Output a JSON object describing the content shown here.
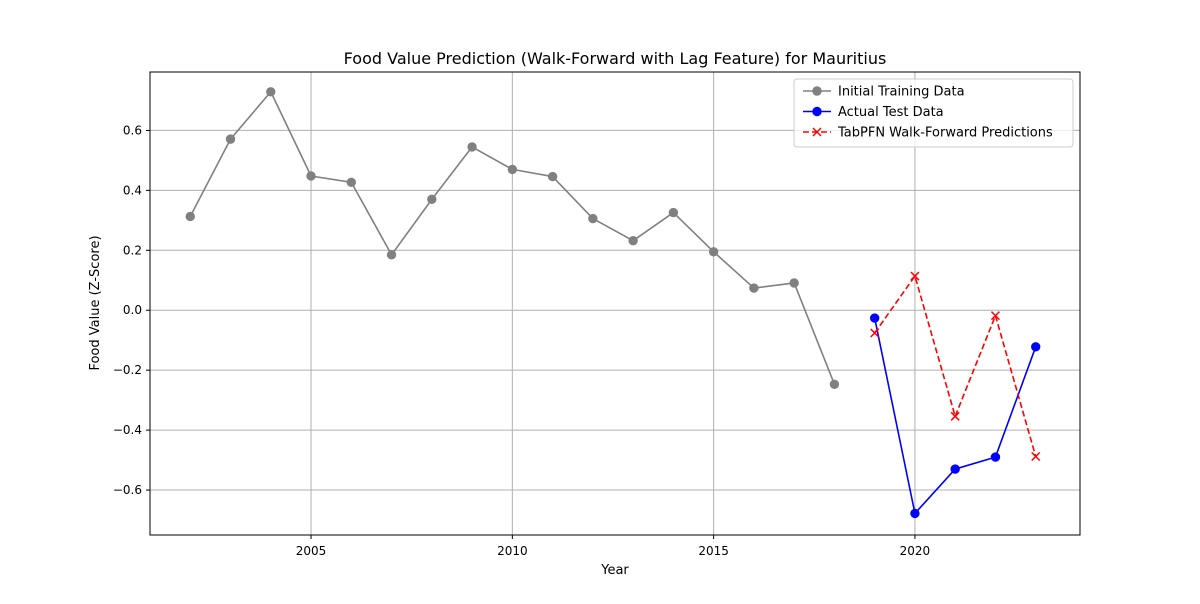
{
  "chart_data": {
    "type": "line",
    "title": "Food Value Prediction (Walk-Forward with Lag Feature) for Mauritius",
    "xlabel": "Year",
    "ylabel": "Food Value (Z-Score)",
    "xlim": [
      2001.0,
      2024.1
    ],
    "ylim": [
      -0.75,
      0.795
    ],
    "x_ticks": [
      2005,
      2010,
      2015,
      2020
    ],
    "y_ticks": [
      -0.6,
      -0.4,
      -0.2,
      0.0,
      0.2,
      0.4,
      0.6
    ],
    "x_tick_labels": [
      "2005",
      "2010",
      "2015",
      "2020"
    ],
    "y_tick_labels": [
      "−0.6",
      "−0.4",
      "−0.2",
      "0.0",
      "0.2",
      "0.4",
      "0.6"
    ],
    "grid": true,
    "legend_position": "top-right",
    "series": [
      {
        "name": "Initial Training Data",
        "color": "#808080",
        "marker": "circle",
        "line_style": "solid",
        "x": [
          2002,
          2003,
          2004,
          2005,
          2006,
          2007,
          2008,
          2009,
          2010,
          2011,
          2012,
          2013,
          2014,
          2015,
          2016,
          2017,
          2018
        ],
        "y": [
          0.313,
          0.571,
          0.729,
          0.448,
          0.427,
          0.185,
          0.37,
          0.545,
          0.47,
          0.446,
          0.306,
          0.232,
          0.326,
          0.195,
          0.074,
          0.091,
          -0.247
        ]
      },
      {
        "name": "Actual Test Data",
        "color": "#0000ff",
        "marker": "circle",
        "line_style": "solid",
        "x": [
          2019,
          2020,
          2021,
          2022,
          2023
        ],
        "y": [
          -0.026,
          -0.678,
          -0.53,
          -0.49,
          -0.122
        ]
      },
      {
        "name": "TabPFN Walk-Forward Predictions",
        "color": "#ff0000",
        "marker": "x",
        "line_style": "dashed",
        "x": [
          2019,
          2020,
          2021,
          2022,
          2023
        ],
        "y": [
          -0.076,
          0.114,
          -0.354,
          -0.018,
          -0.488
        ]
      }
    ]
  }
}
